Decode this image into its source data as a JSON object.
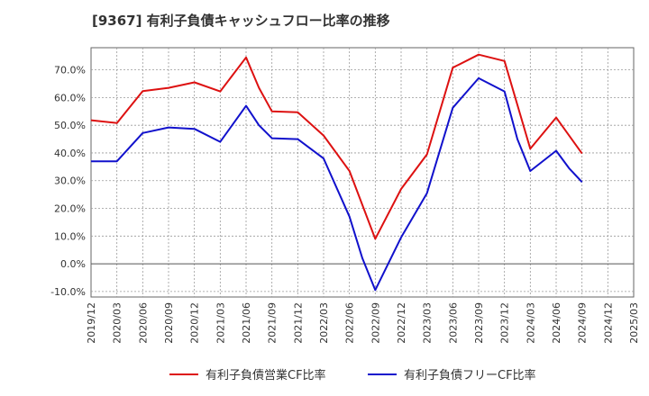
{
  "chart_data": {
    "type": "line",
    "title": "[9367]  有利子負債キャッシュフロー比率の推移",
    "xlabel": "",
    "ylabel": "",
    "ylim": [
      -12,
      78
    ],
    "yticks": [
      -10,
      0,
      10,
      20,
      30,
      40,
      50,
      60,
      70
    ],
    "ytick_labels": [
      "-10.0%",
      "0.0%",
      "10.0%",
      "20.0%",
      "30.0%",
      "40.0%",
      "50.0%",
      "60.0%",
      "70.0%"
    ],
    "categories": [
      "2019/12",
      "2020/03",
      "2020/06",
      "2020/09",
      "2020/12",
      "2021/03",
      "2021/06",
      "2021/09",
      "2021/12",
      "2022/03",
      "2022/06",
      "2022/09",
      "2022/12",
      "2023/03",
      "2023/06",
      "2023/09",
      "2023/12",
      "2024/03",
      "2024/06",
      "2024/09",
      "2024/12",
      "2025/03"
    ],
    "grid": true,
    "legend_position": "bottom",
    "series": [
      {
        "name": "有利子負債営業CF比率",
        "color": "#dd1111",
        "points": [
          [
            0,
            51.8
          ],
          [
            1,
            50.8
          ],
          [
            2,
            62.3
          ],
          [
            3,
            63.5
          ],
          [
            4,
            65.5
          ],
          [
            5,
            62.2
          ],
          [
            6,
            74.5
          ],
          [
            6.5,
            63.5
          ],
          [
            7,
            55.0
          ],
          [
            8,
            54.7
          ],
          [
            9,
            46.3
          ],
          [
            10,
            33.5
          ],
          [
            11,
            9.0
          ],
          [
            12,
            27.0
          ],
          [
            13,
            39.5
          ],
          [
            14,
            70.8
          ],
          [
            15,
            75.5
          ],
          [
            16,
            73.2
          ],
          [
            17,
            41.5
          ],
          [
            18,
            52.8
          ],
          [
            19,
            39.8
          ]
        ]
      },
      {
        "name": "有利子負債フリーCF比率",
        "color": "#1111cc",
        "points": [
          [
            0,
            37.0
          ],
          [
            1,
            37.0
          ],
          [
            2,
            47.2
          ],
          [
            3,
            49.2
          ],
          [
            4,
            48.7
          ],
          [
            5,
            44.0
          ],
          [
            6,
            57.0
          ],
          [
            6.5,
            50.0
          ],
          [
            7,
            45.3
          ],
          [
            8,
            45.0
          ],
          [
            9,
            38.0
          ],
          [
            10,
            17.0
          ],
          [
            10.5,
            2.0
          ],
          [
            11,
            -9.5
          ],
          [
            12,
            9.5
          ],
          [
            13,
            25.5
          ],
          [
            14,
            56.3
          ],
          [
            15,
            67.0
          ],
          [
            16,
            62.2
          ],
          [
            16.5,
            45.0
          ],
          [
            17,
            33.5
          ],
          [
            18,
            40.8
          ],
          [
            18.5,
            34.5
          ],
          [
            19,
            29.5
          ]
        ]
      }
    ]
  }
}
